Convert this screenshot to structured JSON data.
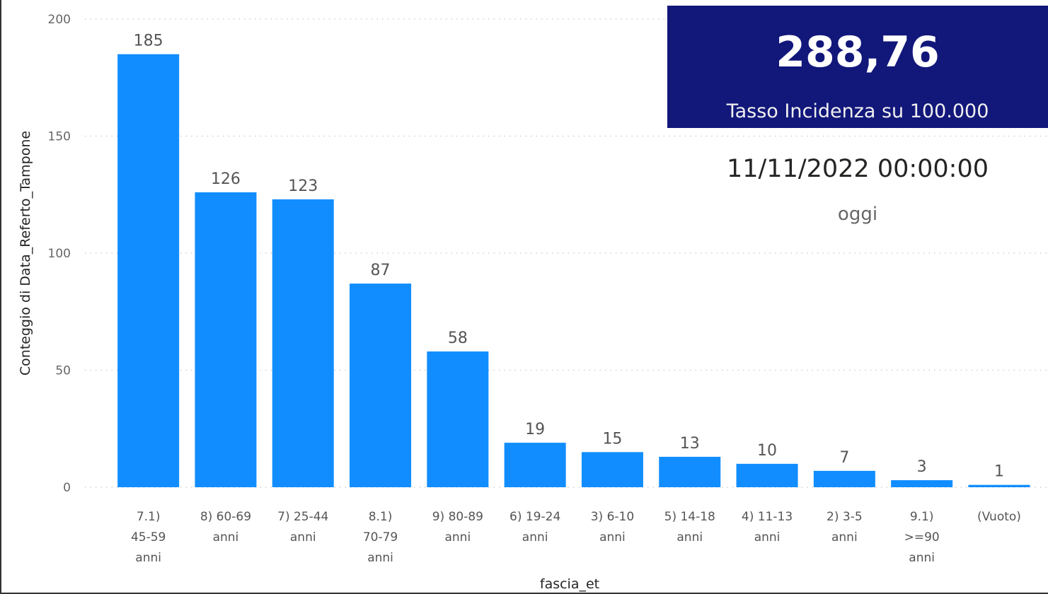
{
  "kpi": {
    "value": "288,76",
    "label": "Tasso Incidenza su 100.000"
  },
  "date_card": {
    "value": "11/11/2022 00:00:00",
    "caption": "oggi"
  },
  "colors": {
    "bar": "#118dff",
    "kpi_background": "#12177a",
    "grid": "#c8c8c8"
  },
  "chart_data": {
    "type": "bar",
    "xlabel": "fascia_et",
    "ylabel": "Conteggio di Data_Referto_Tampone",
    "ylim": [
      0,
      200
    ],
    "yticks": [
      0,
      50,
      100,
      150,
      200
    ],
    "grid": true,
    "categories": [
      "7.1) 45-59 anni",
      "8) 60-69 anni",
      "7) 25-44 anni",
      "8.1) 70-79 anni",
      "9) 80-89 anni",
      "6) 19-24 anni",
      "3) 6-10 anni",
      "5) 14-18 anni",
      "4) 11-13 anni",
      "2) 3-5 anni",
      "9.1) >=90 anni",
      "(Vuoto)"
    ],
    "category_lines": [
      [
        "7.1)",
        "45-59",
        "anni"
      ],
      [
        "8) 60-69",
        "anni"
      ],
      [
        "7) 25-44",
        "anni"
      ],
      [
        "8.1)",
        "70-79",
        "anni"
      ],
      [
        "9) 80-89",
        "anni"
      ],
      [
        "6) 19-24",
        "anni"
      ],
      [
        "3) 6-10",
        "anni"
      ],
      [
        "5) 14-18",
        "anni"
      ],
      [
        "4) 11-13",
        "anni"
      ],
      [
        "2) 3-5",
        "anni"
      ],
      [
        "9.1)",
        ">=90",
        "anni"
      ],
      [
        "(Vuoto)"
      ]
    ],
    "values": [
      185,
      126,
      123,
      87,
      58,
      19,
      15,
      13,
      10,
      7,
      3,
      1
    ]
  }
}
